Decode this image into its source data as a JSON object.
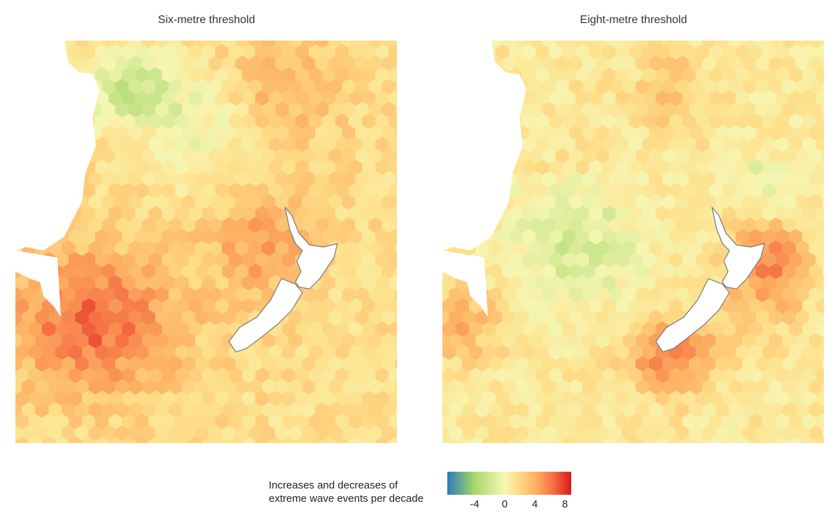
{
  "panels": [
    {
      "title": "Six-metre threshold",
      "variant": 0
    },
    {
      "title": "Eight-metre threshold",
      "variant": 1
    }
  ],
  "legend": {
    "label_line1": "Increases and decreases of",
    "label_line2": "extreme wave events per decade",
    "ticks": [
      "-4",
      "0",
      "4",
      "8"
    ],
    "range": [
      -8,
      8
    ]
  },
  "colors": {
    "low": "#2c7bb6",
    "mid_low": "#a6d96a",
    "neutral": "#f6f6b3",
    "mid_high": "#fdae61",
    "high": "#d7191c",
    "land": "#ffffff",
    "coast": "#777777"
  }
}
